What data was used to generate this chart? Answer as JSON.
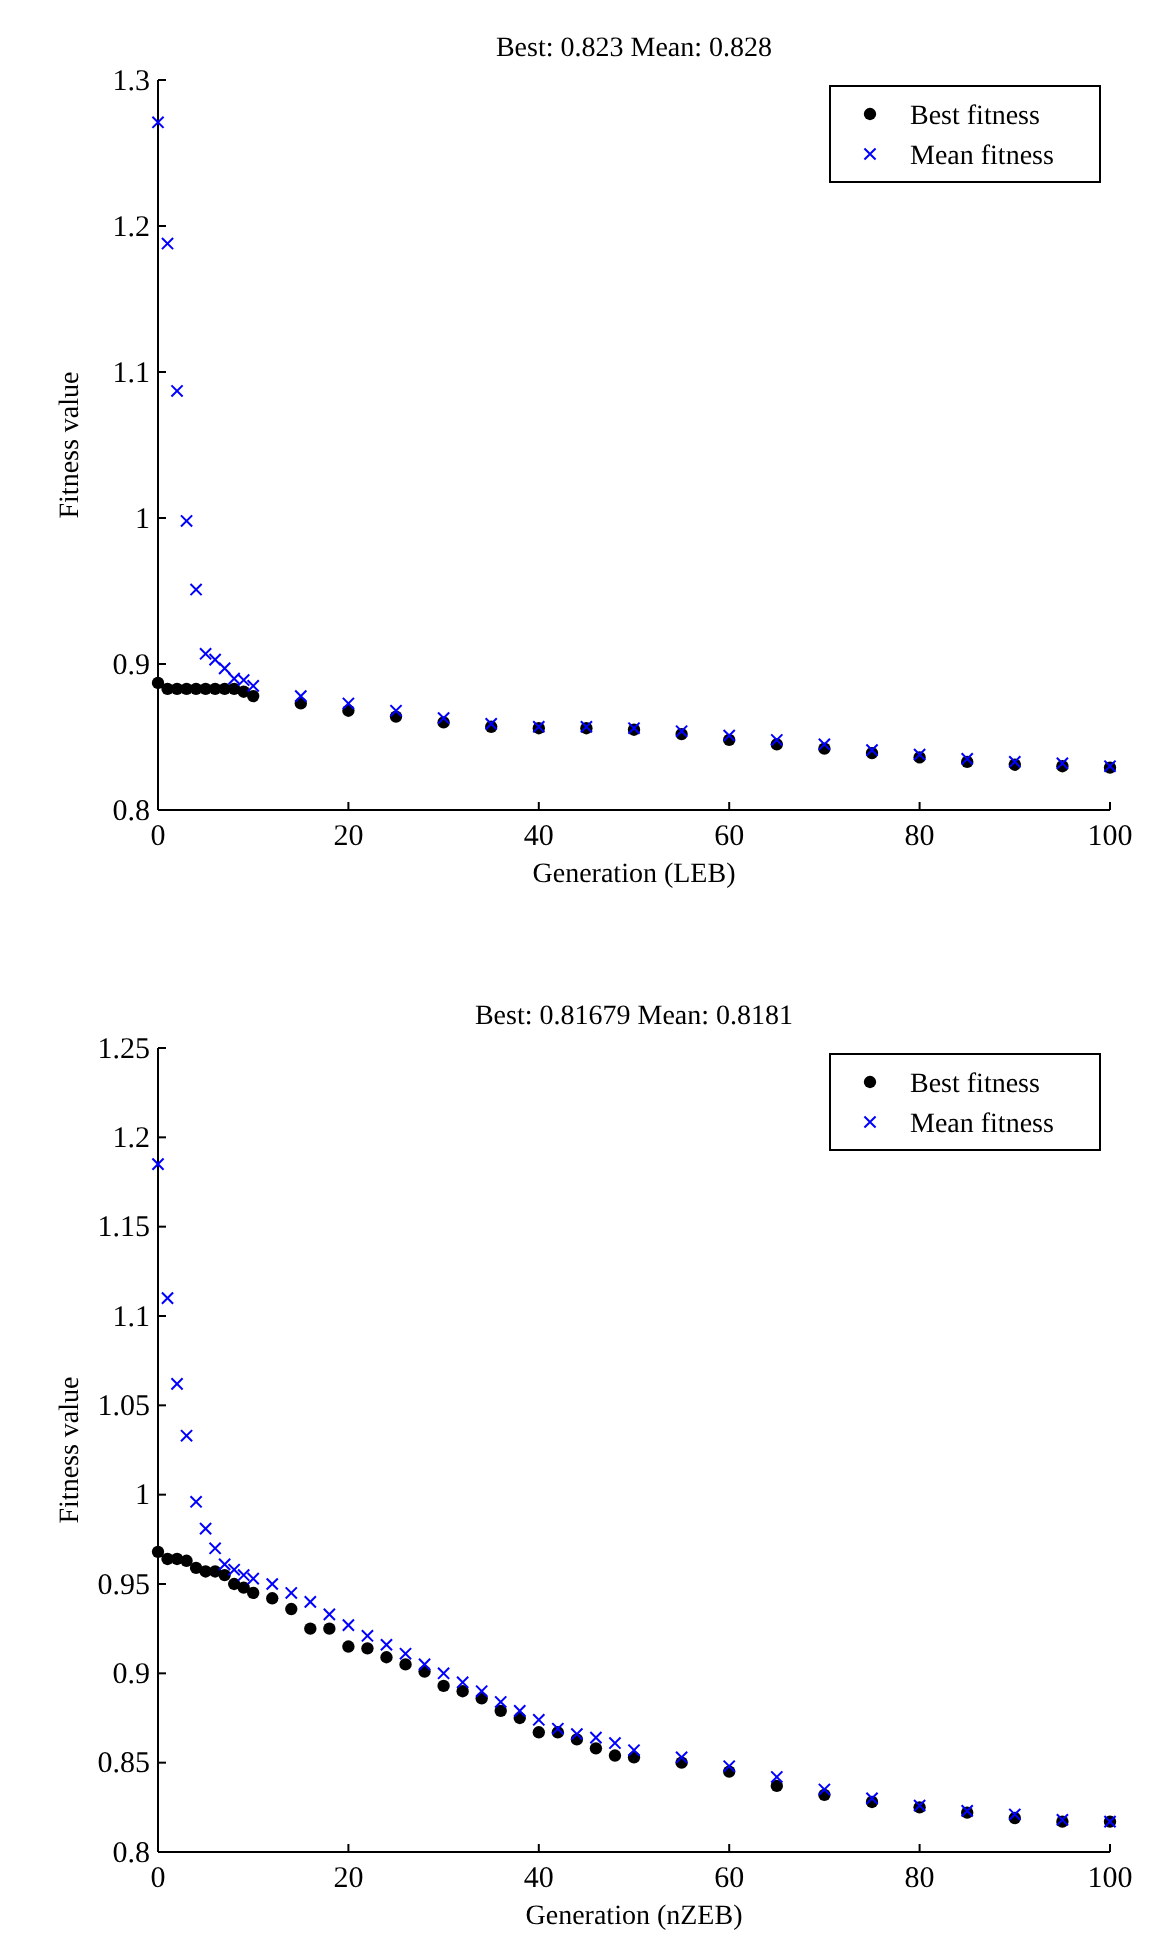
{
  "chart_data": [
    {
      "type": "scatter",
      "title": "Best: 0.823 Mean: 0.828",
      "xlabel": "Generation (LEB)",
      "ylabel": "Fitness value",
      "xlim": [
        0,
        100
      ],
      "xticks": [
        0,
        20,
        40,
        60,
        80,
        100
      ],
      "ylim": [
        0.8,
        1.3
      ],
      "yticks": [
        0.8,
        0.9,
        1,
        1.1,
        1.2,
        1.3
      ],
      "grid": false,
      "legend": "top right",
      "x": [
        0,
        1,
        2,
        3,
        4,
        5,
        6,
        7,
        8,
        9,
        10,
        15,
        20,
        25,
        30,
        35,
        40,
        45,
        50,
        55,
        60,
        65,
        70,
        75,
        80,
        85,
        90,
        95,
        100
      ],
      "series": [
        {
          "name": "Best fitness",
          "color": "#000000",
          "marker": "circle",
          "values": [
            0.887,
            0.883,
            0.883,
            0.883,
            0.883,
            0.883,
            0.883,
            0.883,
            0.883,
            0.881,
            0.878,
            0.873,
            0.868,
            0.864,
            0.86,
            0.857,
            0.856,
            0.856,
            0.855,
            0.852,
            0.848,
            0.845,
            0.842,
            0.839,
            0.836,
            0.833,
            0.831,
            0.83,
            0.829
          ]
        },
        {
          "name": "Mean fitness",
          "color": "#0000ff",
          "marker": "cross",
          "values": [
            1.271,
            1.188,
            1.087,
            0.998,
            0.951,
            0.907,
            0.903,
            0.897,
            0.89,
            0.889,
            0.885,
            0.878,
            0.873,
            0.868,
            0.863,
            0.859,
            0.857,
            0.857,
            0.856,
            0.854,
            0.851,
            0.848,
            0.845,
            0.841,
            0.838,
            0.835,
            0.833,
            0.832,
            0.83
          ]
        }
      ]
    },
    {
      "type": "scatter",
      "title": "Best: 0.81679 Mean: 0.8181",
      "xlabel": "Generation (nZEB)",
      "ylabel": "Fitness value",
      "xlim": [
        0,
        100
      ],
      "xticks": [
        0,
        20,
        40,
        60,
        80,
        100
      ],
      "ylim": [
        0.8,
        1.25
      ],
      "yticks": [
        0.8,
        0.85,
        0.9,
        0.95,
        1,
        1.05,
        1.1,
        1.15,
        1.2,
        1.25
      ],
      "grid": false,
      "legend": "top right",
      "x": [
        0,
        1,
        2,
        3,
        4,
        5,
        6,
        7,
        8,
        9,
        10,
        12,
        14,
        16,
        18,
        20,
        22,
        24,
        26,
        28,
        30,
        32,
        34,
        36,
        38,
        40,
        42,
        44,
        46,
        48,
        50,
        55,
        60,
        65,
        70,
        75,
        80,
        85,
        90,
        95,
        100
      ],
      "series": [
        {
          "name": "Best fitness",
          "color": "#000000",
          "marker": "circle",
          "values": [
            0.968,
            0.964,
            0.964,
            0.963,
            0.959,
            0.957,
            0.957,
            0.955,
            0.95,
            0.948,
            0.945,
            0.942,
            0.936,
            0.925,
            0.925,
            0.915,
            0.914,
            0.909,
            0.905,
            0.901,
            0.893,
            0.89,
            0.886,
            0.879,
            0.875,
            0.867,
            0.867,
            0.863,
            0.858,
            0.854,
            0.853,
            0.85,
            0.845,
            0.837,
            0.832,
            0.828,
            0.825,
            0.822,
            0.819,
            0.817,
            0.817
          ]
        },
        {
          "name": "Mean fitness",
          "color": "#0000ff",
          "marker": "cross",
          "values": [
            1.185,
            1.11,
            1.062,
            1.033,
            0.996,
            0.981,
            0.97,
            0.961,
            0.958,
            0.955,
            0.953,
            0.95,
            0.945,
            0.94,
            0.933,
            0.927,
            0.921,
            0.916,
            0.911,
            0.905,
            0.9,
            0.895,
            0.89,
            0.884,
            0.879,
            0.874,
            0.869,
            0.866,
            0.864,
            0.861,
            0.857,
            0.853,
            0.848,
            0.842,
            0.835,
            0.83,
            0.826,
            0.823,
            0.821,
            0.818,
            0.817
          ]
        }
      ]
    }
  ]
}
